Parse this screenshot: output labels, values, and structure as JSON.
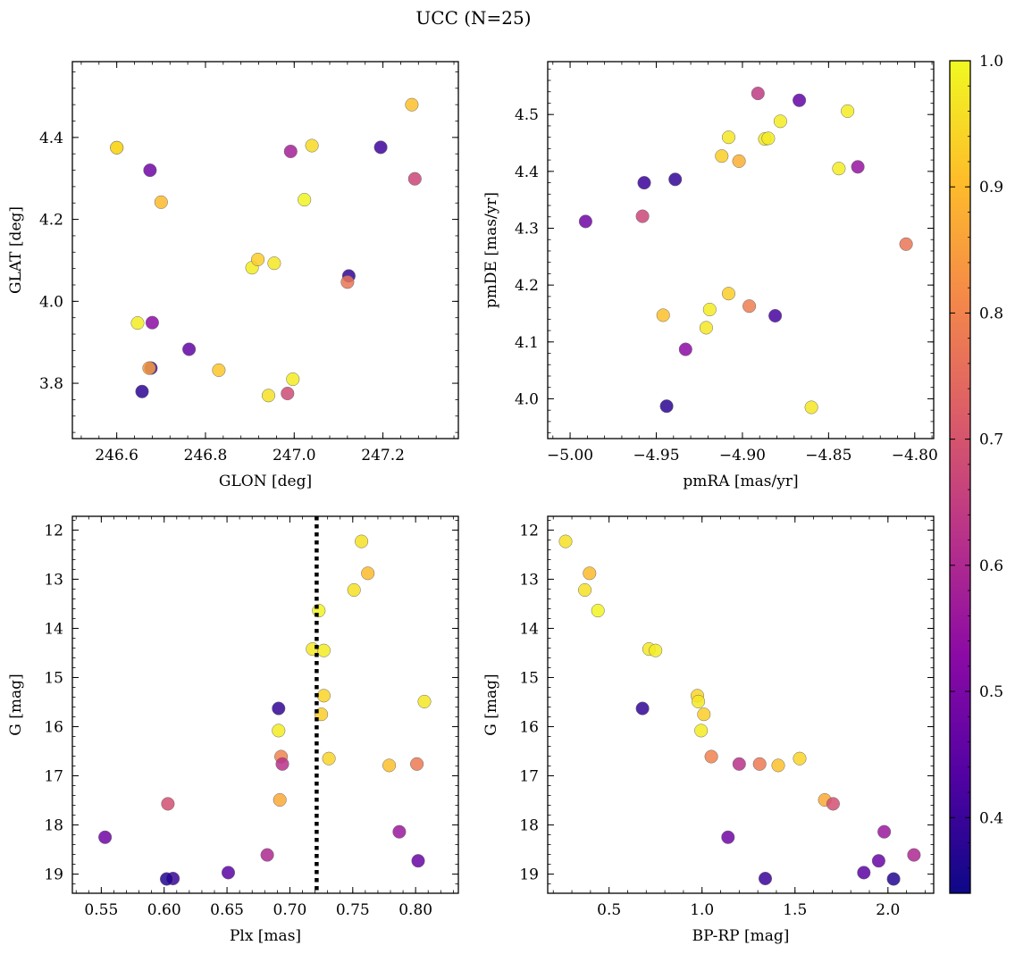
{
  "figure": {
    "title": "UCC (N=25)"
  },
  "colorbar": {
    "min": 0.34,
    "max": 1.0,
    "ticks": [
      0.4,
      0.5,
      0.6,
      0.7,
      0.8,
      0.9,
      1.0
    ],
    "tick_labels": [
      "0.4",
      "0.5",
      "0.6",
      "0.7",
      "0.8",
      "0.9",
      "1.0"
    ],
    "colormap": "plasma",
    "stops": [
      "#0d0887",
      "#5302a3",
      "#8b0aa5",
      "#b83289",
      "#db5c68",
      "#f48849",
      "#febd2a",
      "#f0f921"
    ]
  },
  "chart_data": [
    {
      "type": "scatter",
      "xlabel": "GLON [deg]",
      "ylabel": "GLAT [deg]",
      "xlim": [
        246.5,
        247.37
      ],
      "ylim": [
        3.665,
        4.585
      ],
      "xticks": [
        246.6,
        246.8,
        247.0,
        247.2
      ],
      "xtick_labels": [
        "246.6",
        "246.8",
        "247.0",
        "247.2"
      ],
      "yticks": [
        3.8,
        4.0,
        4.2,
        4.4
      ],
      "ytick_labels": [
        "3.8",
        "4.0",
        "4.2",
        "4.4"
      ],
      "points": [
        {
          "x": 246.6,
          "y": 4.375,
          "c": 0.97
        },
        {
          "x": 246.6,
          "y": 4.375,
          "c": 0.94
        },
        {
          "x": 246.675,
          "y": 4.32,
          "c": 0.48
        },
        {
          "x": 246.7,
          "y": 4.242,
          "c": 0.9
        },
        {
          "x": 246.647,
          "y": 3.947,
          "c": 0.98
        },
        {
          "x": 246.68,
          "y": 3.948,
          "c": 0.53
        },
        {
          "x": 246.763,
          "y": 3.883,
          "c": 0.46
        },
        {
          "x": 246.677,
          "y": 3.837,
          "c": 0.4
        },
        {
          "x": 246.673,
          "y": 3.837,
          "c": 0.85
        },
        {
          "x": 246.657,
          "y": 3.78,
          "c": 0.38
        },
        {
          "x": 246.83,
          "y": 3.832,
          "c": 0.92
        },
        {
          "x": 246.905,
          "y": 4.082,
          "c": 0.98
        },
        {
          "x": 246.918,
          "y": 4.102,
          "c": 0.93
        },
        {
          "x": 246.955,
          "y": 4.093,
          "c": 0.97
        },
        {
          "x": 246.942,
          "y": 3.77,
          "c": 0.96
        },
        {
          "x": 246.985,
          "y": 3.775,
          "c": 0.68
        },
        {
          "x": 246.997,
          "y": 3.81,
          "c": 0.98
        },
        {
          "x": 246.992,
          "y": 4.366,
          "c": 0.58
        },
        {
          "x": 247.04,
          "y": 4.38,
          "c": 0.95
        },
        {
          "x": 247.023,
          "y": 4.248,
          "c": 0.99
        },
        {
          "x": 247.123,
          "y": 4.062,
          "c": 0.39
        },
        {
          "x": 247.12,
          "y": 4.047,
          "c": 0.77
        },
        {
          "x": 247.195,
          "y": 4.376,
          "c": 0.41
        },
        {
          "x": 247.265,
          "y": 4.48,
          "c": 0.91
        },
        {
          "x": 247.272,
          "y": 4.299,
          "c": 0.67
        }
      ]
    },
    {
      "type": "scatter",
      "xlabel": "pmRA [mas/yr]",
      "ylabel": "pmDE [mas/yr]",
      "xlim": [
        -5.013,
        -4.789
      ],
      "ylim": [
        3.93,
        4.593
      ],
      "xticks": [
        -5.0,
        -4.95,
        -4.9,
        -4.85,
        -4.8
      ],
      "xtick_labels": [
        "−5.00",
        "−4.95",
        "−4.90",
        "−4.85",
        "−4.80"
      ],
      "yticks": [
        4.0,
        4.1,
        4.2,
        4.3,
        4.4,
        4.5
      ],
      "ytick_labels": [
        "4.0",
        "4.1",
        "4.2",
        "4.3",
        "4.4",
        "4.5"
      ],
      "points": [
        {
          "x": -4.991,
          "y": 4.312,
          "c": 0.48
        },
        {
          "x": -4.957,
          "y": 4.38,
          "c": 0.4
        },
        {
          "x": -4.958,
          "y": 4.321,
          "c": 0.67
        },
        {
          "x": -4.939,
          "y": 4.386,
          "c": 0.39
        },
        {
          "x": -4.944,
          "y": 3.987,
          "c": 0.38
        },
        {
          "x": -4.946,
          "y": 4.147,
          "c": 0.91
        },
        {
          "x": -4.933,
          "y": 4.087,
          "c": 0.53
        },
        {
          "x": -4.919,
          "y": 4.157,
          "c": 0.98
        },
        {
          "x": -4.921,
          "y": 4.125,
          "c": 0.97
        },
        {
          "x": -4.908,
          "y": 4.185,
          "c": 0.93
        },
        {
          "x": -4.912,
          "y": 4.427,
          "c": 0.93
        },
        {
          "x": -4.908,
          "y": 4.46,
          "c": 0.97
        },
        {
          "x": -4.902,
          "y": 4.418,
          "c": 0.88
        },
        {
          "x": -4.896,
          "y": 4.163,
          "c": 0.79
        },
        {
          "x": -4.891,
          "y": 4.537,
          "c": 0.64
        },
        {
          "x": -4.887,
          "y": 4.457,
          "c": 0.97
        },
        {
          "x": -4.885,
          "y": 4.458,
          "c": 0.98
        },
        {
          "x": -4.881,
          "y": 4.146,
          "c": 0.42
        },
        {
          "x": -4.878,
          "y": 4.488,
          "c": 0.98
        },
        {
          "x": -4.867,
          "y": 4.525,
          "c": 0.46
        },
        {
          "x": -4.86,
          "y": 3.985,
          "c": 0.97
        },
        {
          "x": -4.844,
          "y": 4.405,
          "c": 0.98
        },
        {
          "x": -4.839,
          "y": 4.506,
          "c": 0.98
        },
        {
          "x": -4.833,
          "y": 4.408,
          "c": 0.55
        },
        {
          "x": -4.805,
          "y": 4.272,
          "c": 0.77
        }
      ]
    },
    {
      "type": "scatter",
      "xlabel": "Plx [mas]",
      "ylabel": "G [mag]",
      "xlim": [
        0.527,
        0.834
      ],
      "ylim": [
        19.39,
        11.72
      ],
      "y_inverted": true,
      "vline": {
        "x": 0.7213,
        "style": "dotted"
      },
      "xticks": [
        0.55,
        0.6,
        0.65,
        0.7,
        0.75,
        0.8
      ],
      "xtick_labels": [
        "0.55",
        "0.60",
        "0.65",
        "0.70",
        "0.75",
        "0.80"
      ],
      "yticks": [
        12,
        13,
        14,
        15,
        16,
        17,
        18,
        19
      ],
      "ytick_labels": [
        "12",
        "13",
        "14",
        "15",
        "16",
        "17",
        "18",
        "19"
      ],
      "points": [
        {
          "x": 0.757,
          "y": 12.23,
          "c": 0.96
        },
        {
          "x": 0.762,
          "y": 12.88,
          "c": 0.9
        },
        {
          "x": 0.751,
          "y": 13.22,
          "c": 0.96
        },
        {
          "x": 0.723,
          "y": 13.64,
          "c": 0.99
        },
        {
          "x": 0.718,
          "y": 14.42,
          "c": 0.97
        },
        {
          "x": 0.727,
          "y": 14.45,
          "c": 0.98
        },
        {
          "x": 0.727,
          "y": 15.37,
          "c": 0.94
        },
        {
          "x": 0.725,
          "y": 15.75,
          "c": 0.93
        },
        {
          "x": 0.807,
          "y": 15.49,
          "c": 0.97
        },
        {
          "x": 0.691,
          "y": 15.63,
          "c": 0.39
        },
        {
          "x": 0.691,
          "y": 16.08,
          "c": 0.98
        },
        {
          "x": 0.693,
          "y": 16.61,
          "c": 0.8
        },
        {
          "x": 0.694,
          "y": 16.76,
          "c": 0.62
        },
        {
          "x": 0.731,
          "y": 16.65,
          "c": 0.94
        },
        {
          "x": 0.779,
          "y": 16.79,
          "c": 0.91
        },
        {
          "x": 0.801,
          "y": 16.76,
          "c": 0.78
        },
        {
          "x": 0.692,
          "y": 17.49,
          "c": 0.87
        },
        {
          "x": 0.603,
          "y": 17.57,
          "c": 0.69
        },
        {
          "x": 0.553,
          "y": 18.25,
          "c": 0.48
        },
        {
          "x": 0.787,
          "y": 18.14,
          "c": 0.56
        },
        {
          "x": 0.682,
          "y": 18.61,
          "c": 0.6
        },
        {
          "x": 0.802,
          "y": 18.73,
          "c": 0.47
        },
        {
          "x": 0.651,
          "y": 18.97,
          "c": 0.45
        },
        {
          "x": 0.607,
          "y": 19.09,
          "c": 0.4
        },
        {
          "x": 0.602,
          "y": 19.1,
          "c": 0.37
        }
      ]
    },
    {
      "type": "scatter",
      "xlabel": "BP-RP [mag]",
      "ylabel": "G [mag]",
      "xlim": [
        0.17,
        2.246
      ],
      "ylim": [
        19.39,
        11.72
      ],
      "y_inverted": true,
      "xticks": [
        0.5,
        1.0,
        1.5,
        2.0
      ],
      "xtick_labels": [
        "0.5",
        "1.0",
        "1.5",
        "2.0"
      ],
      "yticks": [
        12,
        13,
        14,
        15,
        16,
        17,
        18,
        19
      ],
      "ytick_labels": [
        "12",
        "13",
        "14",
        "15",
        "16",
        "17",
        "18",
        "19"
      ],
      "points": [
        {
          "x": 0.266,
          "y": 12.23,
          "c": 0.96
        },
        {
          "x": 0.395,
          "y": 12.88,
          "c": 0.9
        },
        {
          "x": 0.37,
          "y": 13.22,
          "c": 0.96
        },
        {
          "x": 0.44,
          "y": 13.64,
          "c": 0.99
        },
        {
          "x": 0.715,
          "y": 14.42,
          "c": 0.97
        },
        {
          "x": 0.75,
          "y": 14.45,
          "c": 0.98
        },
        {
          "x": 0.975,
          "y": 15.37,
          "c": 0.94
        },
        {
          "x": 0.98,
          "y": 15.49,
          "c": 0.97
        },
        {
          "x": 1.01,
          "y": 15.75,
          "c": 0.93
        },
        {
          "x": 0.68,
          "y": 15.63,
          "c": 0.39
        },
        {
          "x": 0.995,
          "y": 16.08,
          "c": 0.98
        },
        {
          "x": 1.05,
          "y": 16.61,
          "c": 0.8
        },
        {
          "x": 1.2,
          "y": 16.76,
          "c": 0.62
        },
        {
          "x": 1.31,
          "y": 16.76,
          "c": 0.78
        },
        {
          "x": 1.41,
          "y": 16.79,
          "c": 0.91
        },
        {
          "x": 1.525,
          "y": 16.65,
          "c": 0.94
        },
        {
          "x": 1.66,
          "y": 17.49,
          "c": 0.87
        },
        {
          "x": 1.705,
          "y": 17.57,
          "c": 0.69
        },
        {
          "x": 1.14,
          "y": 18.25,
          "c": 0.48
        },
        {
          "x": 1.34,
          "y": 19.09,
          "c": 0.4
        },
        {
          "x": 1.98,
          "y": 18.14,
          "c": 0.56
        },
        {
          "x": 2.14,
          "y": 18.61,
          "c": 0.6
        },
        {
          "x": 1.95,
          "y": 18.73,
          "c": 0.47
        },
        {
          "x": 1.87,
          "y": 18.97,
          "c": 0.45
        },
        {
          "x": 2.03,
          "y": 19.1,
          "c": 0.37
        }
      ]
    }
  ]
}
